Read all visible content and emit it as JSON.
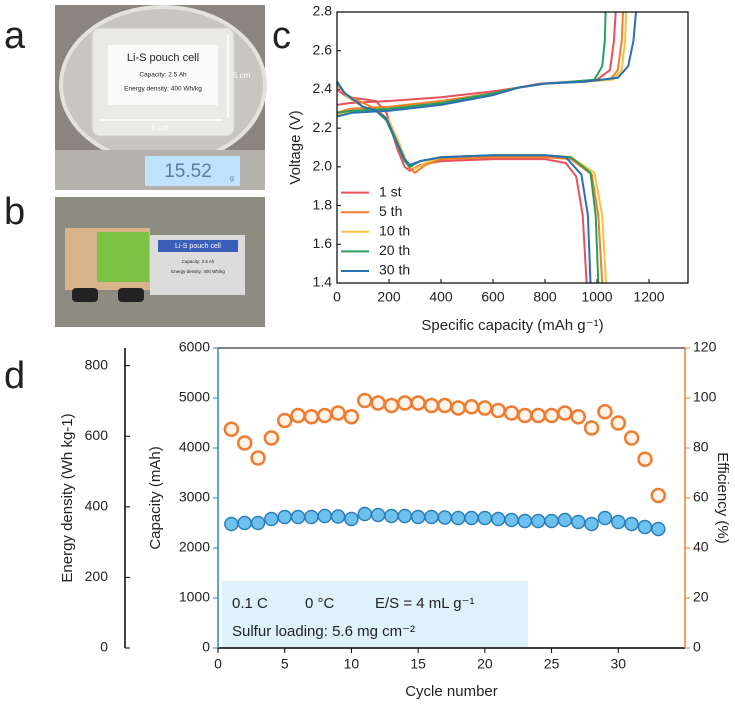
{
  "photos": [
    {
      "label": "a",
      "cell_title": "Li-S pouch cell",
      "capacity": "Capacity: 2.5 Ah",
      "energy": "Energy density: 400 Wh/kg",
      "height": "5 cm",
      "width": "8 cm",
      "scale_reading": "15.52",
      "scale_unit": "g"
    },
    {
      "label": "b",
      "cell_title": "Li-S pouch cell",
      "capacity": "Capacity: 2.5 Ah",
      "energy": "Energy density: 400 Wh/kg"
    }
  ],
  "chart_data": [
    {
      "type": "line",
      "label": "c",
      "xlabel": "Specific capacity (mAh g⁻¹)",
      "ylabel": "Voltage (V)",
      "xlim": [
        0,
        1350
      ],
      "ylim": [
        1.4,
        2.8
      ],
      "xticks": [
        0,
        200,
        400,
        600,
        800,
        1000,
        1200
      ],
      "yticks": [
        1.4,
        1.6,
        1.8,
        {
          "value": 2,
          "label": "2.0"
        },
        2.2,
        2.4,
        2.6,
        2.8
      ],
      "legend": "lower left",
      "series": [
        {
          "name": "1 st",
          "color": "#e8505b",
          "x": [
            0,
            40,
            100,
            150,
            190,
            230,
            260,
            280,
            320,
            400,
            600,
            800,
            880,
            920,
            945,
            960,
            null,
            0,
            50,
            200,
            400,
            600,
            700,
            780,
            900,
            1000,
            1050,
            1065,
            1072
          ],
          "values": [
            2.4,
            2.36,
            2.35,
            2.34,
            2.28,
            2.1,
            2.0,
            1.98,
            2.01,
            2.03,
            2.04,
            2.04,
            2.02,
            1.95,
            1.75,
            1.4,
            null,
            2.32,
            2.33,
            2.34,
            2.36,
            2.39,
            2.41,
            2.43,
            2.44,
            2.45,
            2.5,
            2.65,
            2.8
          ]
        },
        {
          "name": "5 th",
          "color": "#f07f2a",
          "x": [
            0,
            40,
            100,
            150,
            200,
            240,
            280,
            300,
            340,
            400,
            600,
            800,
            900,
            980,
            1005,
            1020,
            null,
            0,
            50,
            200,
            400,
            600,
            700,
            800,
            950,
            1050,
            1080,
            1095,
            1100
          ],
          "values": [
            2.42,
            2.37,
            2.33,
            2.3,
            2.24,
            2.1,
            1.99,
            1.97,
            2.01,
            2.04,
            2.05,
            2.05,
            2.04,
            1.96,
            1.75,
            1.4,
            null,
            2.28,
            2.3,
            2.31,
            2.34,
            2.38,
            2.41,
            2.43,
            2.44,
            2.45,
            2.5,
            2.65,
            2.8
          ]
        },
        {
          "name": "10 th",
          "color": "#f5c242",
          "x": [
            0,
            40,
            100,
            150,
            200,
            240,
            270,
            300,
            340,
            400,
            600,
            800,
            900,
            990,
            1020,
            1035,
            null,
            0,
            60,
            200,
            400,
            600,
            700,
            800,
            950,
            1060,
            1095,
            1108,
            1112
          ],
          "values": [
            2.43,
            2.36,
            2.31,
            2.29,
            2.24,
            2.12,
            2.02,
            1.99,
            2.02,
            2.05,
            2.06,
            2.06,
            2.05,
            1.97,
            1.75,
            1.4,
            null,
            2.27,
            2.29,
            2.3,
            2.33,
            2.38,
            2.41,
            2.43,
            2.44,
            2.45,
            2.5,
            2.65,
            2.8
          ]
        },
        {
          "name": "20 th",
          "color": "#2a9d5c",
          "x": [
            0,
            30,
            100,
            150,
            190,
            230,
            260,
            280,
            320,
            400,
            600,
            800,
            900,
            975,
            995,
            1005,
            null,
            0,
            60,
            200,
            400,
            600,
            700,
            800,
            900,
            990,
            1020,
            1030,
            1033
          ],
          "values": [
            2.44,
            2.38,
            2.31,
            2.29,
            2.24,
            2.12,
            2.03,
            2.0,
            2.03,
            2.05,
            2.06,
            2.06,
            2.05,
            1.97,
            1.75,
            1.4,
            null,
            2.28,
            2.29,
            2.3,
            2.33,
            2.38,
            2.41,
            2.43,
            2.44,
            2.45,
            2.52,
            2.65,
            2.8
          ]
        },
        {
          "name": "30 th",
          "color": "#2a6fb0",
          "x": [
            0,
            30,
            100,
            150,
            190,
            230,
            260,
            280,
            320,
            400,
            600,
            800,
            880,
            940,
            965,
            975,
            null,
            0,
            60,
            200,
            400,
            600,
            700,
            800,
            950,
            1080,
            1120,
            1140,
            1150
          ],
          "values": [
            2.44,
            2.38,
            2.31,
            2.29,
            2.25,
            2.13,
            2.04,
            2.01,
            2.03,
            2.05,
            2.06,
            2.06,
            2.05,
            1.96,
            1.75,
            1.4,
            null,
            2.26,
            2.28,
            2.29,
            2.32,
            2.37,
            2.41,
            2.43,
            2.44,
            2.46,
            2.52,
            2.65,
            2.8
          ]
        }
      ]
    },
    {
      "type": "scatter",
      "label": "d",
      "xlabel": "Cycle number",
      "ylabel": "Capacity (mAh)",
      "y2label": "Efficiency (%)",
      "y3label": "Energy density (Wh kg-1)",
      "xlim": [
        0,
        35
      ],
      "xticks": [
        0,
        5,
        10,
        15,
        20,
        25,
        30
      ],
      "ylim": [
        0,
        6000
      ],
      "yticks": [
        0,
        1000,
        2000,
        3000,
        4000,
        5000,
        6000
      ],
      "ycolor": "#2e86c1",
      "y2lim": [
        0,
        120
      ],
      "y2ticks": [
        0,
        20,
        40,
        60,
        80,
        100,
        120
      ],
      "y2color": "#ee7d31",
      "y3lim": [
        0,
        850
      ],
      "y3ticks": [
        0,
        200,
        400,
        600,
        800
      ],
      "x": [
        1,
        2,
        3,
        4,
        5,
        6,
        7,
        8,
        9,
        10,
        11,
        12,
        13,
        14,
        15,
        16,
        17,
        18,
        19,
        20,
        21,
        22,
        23,
        24,
        25,
        26,
        27,
        28,
        29,
        30,
        31,
        32,
        33
      ],
      "series": [
        {
          "color": "#2a7fb8",
          "facecolor": "#6ec0ee",
          "values": [
            2480,
            2500,
            2500,
            2580,
            2620,
            2620,
            2620,
            2640,
            2630,
            2580,
            2680,
            2660,
            2640,
            2640,
            2620,
            2620,
            2610,
            2600,
            2600,
            2600,
            2580,
            2560,
            2540,
            2540,
            2540,
            2560,
            2520,
            2480,
            2600,
            2520,
            2480,
            2420,
            2380
          ]
        },
        {
          "color": "#ee7d31",
          "facecolor": "#fff3ea",
          "axis": "y2",
          "values": [
            87.5,
            82,
            76,
            84,
            91,
            93,
            92.5,
            93,
            94,
            92.5,
            99,
            98,
            97,
            98,
            98,
            97,
            97,
            96,
            96.5,
            96,
            95,
            94,
            93,
            93,
            93,
            94,
            92.5,
            88,
            94.5,
            90,
            84,
            75.5,
            61
          ]
        }
      ],
      "annotations": [
        "0.1 C",
        "0 °C",
        "E/S = 4 mL g⁻¹",
        "Sulfur loading: 5.6 mg cm⁻²"
      ],
      "annotation_box": "#dff1fb"
    }
  ]
}
